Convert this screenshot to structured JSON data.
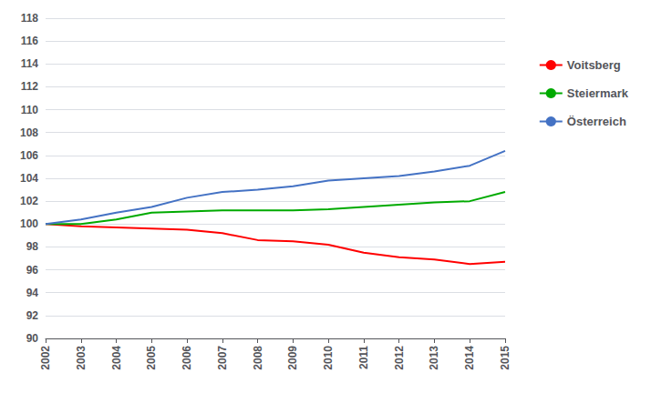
{
  "chart_data": {
    "type": "line",
    "x": [
      2002,
      2003,
      2004,
      2005,
      2006,
      2007,
      2008,
      2009,
      2010,
      2011,
      2012,
      2013,
      2014,
      2015
    ],
    "series": [
      {
        "name": "Voitsberg",
        "color": "#FF0000",
        "values": [
          100.0,
          99.8,
          99.7,
          99.6,
          99.5,
          99.2,
          98.6,
          98.5,
          98.2,
          97.5,
          97.1,
          96.9,
          96.5,
          96.7
        ]
      },
      {
        "name": "Steiermark",
        "color": "#00AA00",
        "values": [
          100.0,
          100.0,
          100.4,
          101.0,
          101.1,
          101.2,
          101.2,
          101.2,
          101.3,
          101.5,
          101.7,
          101.9,
          102.0,
          102.8
        ]
      },
      {
        "name": "Österreich",
        "color": "#4472C4",
        "values": [
          100.0,
          100.4,
          101.0,
          101.5,
          102.3,
          102.8,
          103.0,
          103.3,
          103.8,
          104.0,
          104.2,
          104.6,
          105.1,
          106.4
        ]
      }
    ],
    "xlim": [
      2002,
      2015
    ],
    "xticks": [
      2002,
      2003,
      2004,
      2005,
      2006,
      2007,
      2008,
      2009,
      2010,
      2011,
      2012,
      2013,
      2014,
      2015
    ],
    "ylim": [
      90,
      118
    ],
    "yticks": [
      90,
      92,
      94,
      96,
      98,
      100,
      102,
      104,
      106,
      108,
      110,
      112,
      114,
      116,
      118
    ],
    "grid": true,
    "legend": "right"
  }
}
